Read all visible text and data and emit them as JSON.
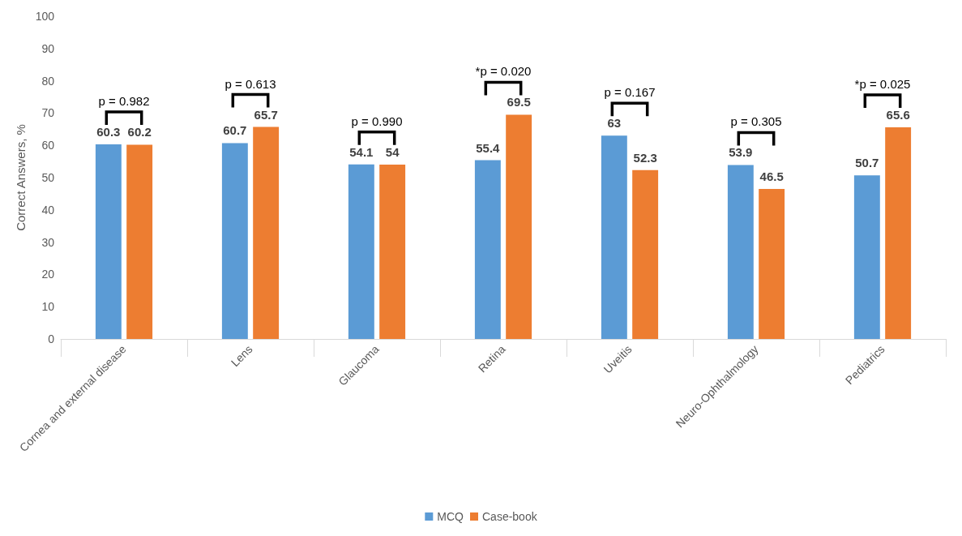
{
  "chart_data": {
    "type": "bar",
    "ylabel": "Correct Answers, %",
    "categories": [
      "Cornea and external disease",
      "Lens",
      "Glaucoma",
      "Retina",
      "Uveitis",
      "Neuro-Ophthalmology",
      "Pediatrics"
    ],
    "series": [
      {
        "name": "MCQ",
        "color": "#5b9bd5",
        "values": [
          60.3,
          60.7,
          54.1,
          55.4,
          63,
          53.9,
          50.7
        ]
      },
      {
        "name": "Case-book",
        "color": "#ed7d31",
        "values": [
          60.2,
          65.7,
          54,
          69.5,
          52.3,
          46.5,
          65.6
        ]
      }
    ],
    "ylim": [
      0,
      100
    ],
    "yticks": [
      0,
      10,
      20,
      30,
      40,
      50,
      60,
      70,
      80,
      90,
      100
    ],
    "data_labels": true,
    "grid": false,
    "legend": "bottom",
    "annotations": [
      "p = 0.982",
      "p = 0.613",
      "p = 0.990",
      "*p = 0.020",
      "p = 0.167",
      "p = 0.305",
      "*p = 0.025"
    ]
  }
}
